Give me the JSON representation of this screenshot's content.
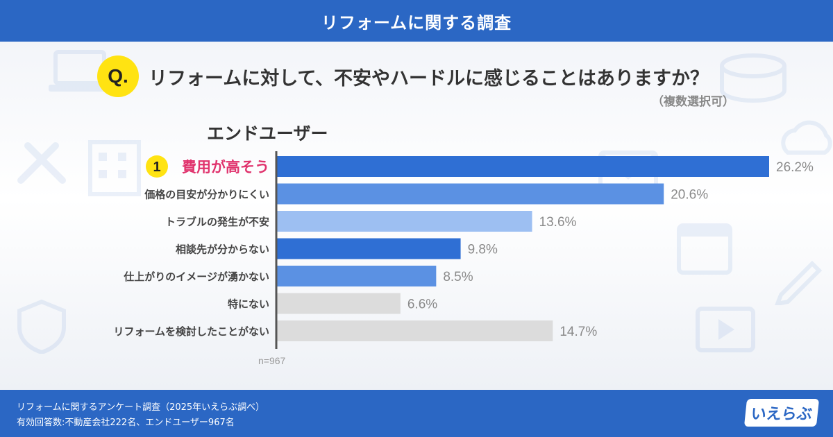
{
  "header": {
    "title": "リフォームに関する調査"
  },
  "question": {
    "badge": "Q.",
    "text": "リフォームに対して、不安やハードルに感じることはありますか？",
    "note": "（複数選択可）"
  },
  "segment_title": "エンドユーザー",
  "chart_data": {
    "type": "bar",
    "orientation": "horizontal",
    "categories": [
      "費用が高そう",
      "価格の目安が分かりにくい",
      "トラブルの発生が不安",
      "相談先が分からない",
      "仕上がりのイメージが湧かない",
      "特にない",
      "リフォームを検討したことがない"
    ],
    "values": [
      26.2,
      20.6,
      13.6,
      9.8,
      8.5,
      6.6,
      14.7
    ],
    "value_labels": [
      "26.2%",
      "20.6%",
      "13.6%",
      "9.8%",
      "8.5%",
      "6.6%",
      "14.7%"
    ],
    "bar_colors": [
      "#2f6fd4",
      "#5b91e3",
      "#9dbff2",
      "#2f6fd4",
      "#5b91e3",
      "#dcdcdc",
      "#dcdcdc"
    ],
    "rank_badge": "1",
    "highlight_color": "#e0336d",
    "xlim": [
      0,
      26.2
    ],
    "sample_size": "n=967"
  },
  "footer": {
    "line1": "リフォームに関するアンケート調査（2025年いえらぶ調べ）",
    "line2": "有効回答数:不動産会社222名、エンドユーザー967名",
    "brand": "いえらぶ"
  }
}
